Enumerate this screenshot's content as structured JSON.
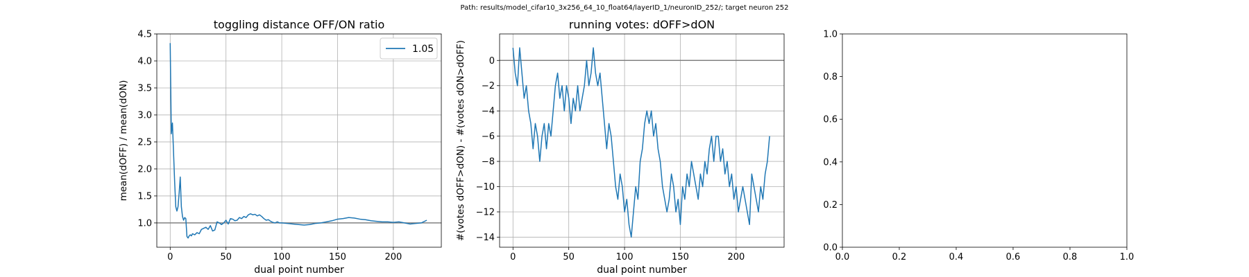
{
  "suptitle": "Path: results/model_cifar10_3x256_64_10_float64/layerID_1/neuronID_252/; target neuron 252",
  "colors": {
    "series": "#1f77b4",
    "refline": "#808080",
    "grid": "#b0b0b0",
    "axes": "#000000"
  },
  "chart_data": [
    {
      "type": "line",
      "title": "toggling distance OFF/ON ratio",
      "xlabel": "dual point number",
      "ylabel": "mean(dOFF) / mean(dON)",
      "xlim": [
        -12,
        243
      ],
      "ylim": [
        0.55,
        4.5
      ],
      "xticks": [
        0,
        50,
        100,
        150,
        200
      ],
      "yticks": [
        1.0,
        1.5,
        2.0,
        2.5,
        3.0,
        3.5,
        4.0,
        4.5
      ],
      "grid": true,
      "hline": 1.0,
      "legend": {
        "placement": "top-right",
        "entries": [
          "1.05"
        ]
      },
      "series": [
        {
          "name": "1.05",
          "x": [
            0,
            1,
            2,
            3,
            4,
            5,
            6,
            7,
            8,
            9,
            10,
            11,
            12,
            13,
            14,
            15,
            16,
            17,
            18,
            19,
            20,
            22,
            24,
            26,
            28,
            30,
            32,
            34,
            36,
            38,
            40,
            42,
            44,
            46,
            48,
            50,
            52,
            54,
            56,
            58,
            60,
            62,
            64,
            66,
            68,
            70,
            72,
            74,
            76,
            78,
            80,
            82,
            84,
            86,
            88,
            90,
            92,
            94,
            96,
            98,
            100,
            105,
            110,
            115,
            120,
            125,
            130,
            135,
            140,
            145,
            150,
            155,
            160,
            165,
            170,
            175,
            180,
            185,
            190,
            195,
            200,
            205,
            210,
            215,
            220,
            225,
            230
          ],
          "y": [
            4.33,
            2.65,
            2.85,
            2.3,
            1.75,
            1.3,
            1.22,
            1.3,
            1.55,
            1.85,
            1.3,
            1.12,
            1.05,
            1.1,
            1.08,
            0.75,
            0.72,
            0.76,
            0.78,
            0.76,
            0.8,
            0.78,
            0.82,
            0.8,
            0.88,
            0.9,
            0.92,
            0.88,
            0.95,
            0.85,
            0.87,
            1.02,
            1.0,
            0.97,
            1.0,
            1.05,
            0.98,
            1.08,
            1.07,
            1.04,
            1.05,
            1.1,
            1.08,
            1.12,
            1.1,
            1.15,
            1.17,
            1.15,
            1.16,
            1.13,
            1.15,
            1.12,
            1.08,
            1.05,
            1.06,
            1.03,
            1.01,
            1.0,
            1.02,
            1.0,
            1.0,
            0.99,
            0.98,
            0.97,
            0.96,
            0.97,
            0.99,
            1.0,
            1.02,
            1.04,
            1.07,
            1.08,
            1.1,
            1.09,
            1.07,
            1.06,
            1.04,
            1.03,
            1.02,
            1.02,
            1.01,
            1.02,
            1.0,
            0.98,
            0.99,
            1.0,
            1.05
          ]
        }
      ]
    },
    {
      "type": "line",
      "title": "running votes: dOFF>dON",
      "xlabel": "dual point number",
      "ylabel": "#(votes dOFF>dON) - #(votes dON>dOFF)",
      "xlim": [
        -12,
        243
      ],
      "ylim": [
        -14.8,
        2.1
      ],
      "xticks": [
        0,
        50,
        100,
        150,
        200
      ],
      "yticks": [
        0,
        -2,
        -4,
        -6,
        -8,
        -10,
        -12,
        -14
      ],
      "grid": true,
      "hline": 0,
      "series": [
        {
          "name": "",
          "x": [
            0,
            2,
            4,
            6,
            8,
            10,
            12,
            14,
            16,
            18,
            20,
            22,
            24,
            26,
            28,
            30,
            32,
            34,
            36,
            38,
            40,
            42,
            44,
            46,
            48,
            50,
            52,
            54,
            56,
            58,
            60,
            62,
            64,
            66,
            68,
            70,
            72,
            74,
            76,
            78,
            80,
            82,
            84,
            86,
            88,
            90,
            92,
            94,
            96,
            98,
            100,
            102,
            104,
            106,
            108,
            110,
            112,
            114,
            116,
            118,
            120,
            122,
            124,
            126,
            128,
            130,
            132,
            134,
            136,
            138,
            140,
            142,
            144,
            146,
            148,
            150,
            152,
            154,
            156,
            158,
            160,
            162,
            164,
            166,
            168,
            170,
            172,
            174,
            176,
            178,
            180,
            182,
            184,
            186,
            188,
            190,
            192,
            194,
            196,
            198,
            200,
            202,
            204,
            206,
            208,
            210,
            212,
            214,
            216,
            218,
            220,
            222,
            224,
            226,
            228,
            230
          ],
          "y": [
            1,
            -1,
            -2,
            1,
            -1,
            -3,
            -2,
            -4,
            -5,
            -7,
            -5,
            -6,
            -8,
            -6,
            -5,
            -7,
            -5,
            -6,
            -4,
            -2,
            -1,
            -3,
            -2,
            -4,
            -2,
            -3,
            -5,
            -3,
            -4,
            -2,
            -4,
            -3,
            -2,
            0,
            -2,
            -1,
            1,
            -1,
            -2,
            -1,
            -3,
            -5,
            -7,
            -5,
            -6,
            -8,
            -10,
            -11,
            -9,
            -10,
            -12,
            -11,
            -13,
            -14,
            -12,
            -10,
            -11,
            -8,
            -7,
            -5,
            -4,
            -5,
            -4,
            -6,
            -5,
            -7,
            -8,
            -10,
            -11,
            -12,
            -11,
            -9,
            -10,
            -12,
            -11,
            -13,
            -10,
            -11,
            -9,
            -10,
            -8,
            -9,
            -10,
            -11,
            -9,
            -10,
            -8,
            -9,
            -7,
            -6,
            -8,
            -6,
            -6,
            -8,
            -7,
            -9,
            -8,
            -10,
            -9,
            -11,
            -10,
            -12,
            -11,
            -10,
            -11,
            -12,
            -13,
            -9,
            -10,
            -11,
            -12,
            -10,
            -11,
            -9,
            -8,
            -6
          ]
        }
      ]
    },
    {
      "type": "line",
      "title": "",
      "xlabel": "",
      "ylabel": "",
      "xlim": [
        0,
        1
      ],
      "ylim": [
        0,
        1
      ],
      "xticks": [
        0.0,
        0.2,
        0.4,
        0.6,
        0.8,
        1.0
      ],
      "yticks": [
        0.0,
        0.2,
        0.4,
        0.6,
        0.8,
        1.0
      ],
      "grid": false,
      "series": []
    }
  ]
}
